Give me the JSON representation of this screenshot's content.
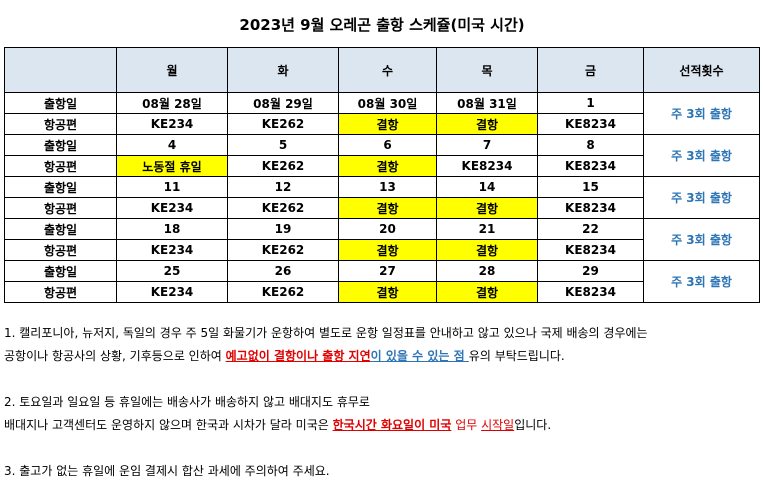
{
  "title": "2023년 9월 오레곤 출항 스케쥴(미국 시간)",
  "table": {
    "headers": [
      "",
      "월",
      "화",
      "수",
      "목",
      "금",
      "선적횟수"
    ],
    "weeks": [
      {
        "date_label": "출항일",
        "dates": [
          "08월 28일",
          "08월 29일",
          "08월 30일",
          "08월 31일",
          "1"
        ],
        "flight_label": "항공편",
        "flights": [
          "KE234",
          "KE262",
          "결항",
          "결항",
          "KE8234"
        ],
        "count": "주 3회 출항"
      },
      {
        "date_label": "출항일",
        "dates": [
          "4",
          "5",
          "6",
          "7",
          "8"
        ],
        "flight_label": "항공편",
        "flights": [
          "노동절 휴일",
          "KE262",
          "결항",
          "KE8234",
          "KE8234"
        ],
        "count": "주 3회 출항"
      },
      {
        "date_label": "출항일",
        "dates": [
          "11",
          "12",
          "13",
          "14",
          "15"
        ],
        "flight_label": "항공편",
        "flights": [
          "KE234",
          "KE262",
          "결항",
          "결항",
          "KE8234"
        ],
        "count": "주 3회 출항"
      },
      {
        "date_label": "출항일",
        "dates": [
          "18",
          "19",
          "20",
          "21",
          "22"
        ],
        "flight_label": "항공편",
        "flights": [
          "KE234",
          "KE262",
          "결항",
          "결항",
          "KE8234"
        ],
        "count": "주 3회 출항"
      },
      {
        "date_label": "출항일",
        "dates": [
          "25",
          "26",
          "27",
          "28",
          "29"
        ],
        "flight_label": "항공편",
        "flights": [
          "KE234",
          "KE262",
          "결항",
          "결항",
          "KE8234"
        ],
        "count": "주 3회 출항"
      }
    ],
    "highlight_color": "#ffff00",
    "header_bg": "#dce6f1",
    "count_color": "#2e75b6"
  },
  "notes": {
    "n1_line1": "1. 캘리포니아, 뉴저지, 독일의 경우 주 5일 화물기가 운항하여 별도로 운항 일정표를 안내하고 않고 있으나 국제 배송의 경우에는",
    "n1_line2_a": "공항이나 항공사의 상황, 기후등으로 인하여 ",
    "n1_line2_red": "예고없이 결항이나 출항 지연",
    "n1_line2_blue": "이 있을 수 있는 점 ",
    "n1_line2_end": "유의 부탁드립니다.",
    "n2_line1": "2. 토요일과 일요일 등 휴일에는 배송사가 배송하지 않고 배대지도 휴무로",
    "n2_line2_a": "배대지나 고객센터도 운영하지 않으며 한국과 시차가 달라 미국은 ",
    "n2_line2_red": "한국시간 화요일이 미국",
    "n2_line2_b": " 업무 ",
    "n2_line2_red2": "시작일",
    "n2_line2_end": "입니다.",
    "n3": "3. 출고가 없는 휴일에 운임 결제시 합산 과세에 주의하여 주세요."
  }
}
